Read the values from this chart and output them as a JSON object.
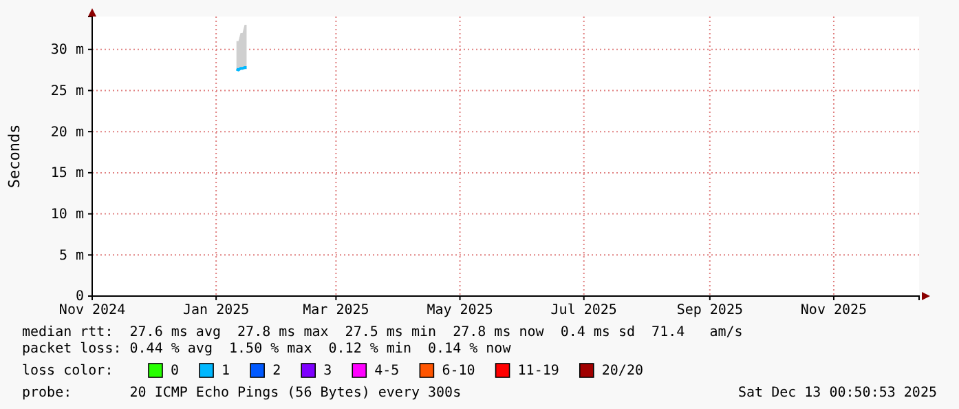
{
  "chart_data": {
    "type": "line",
    "ylabel": "Seconds",
    "x": [
      "2025-01-11",
      "2025-01-12",
      "2025-01-13",
      "2025-01-14",
      "2025-01-15",
      "2025-01-16"
    ],
    "series": [
      {
        "color": "#00b8ff",
        "values": [
          27.6,
          27.5,
          27.7,
          27.7,
          27.8,
          27.8
        ],
        "lower": [
          27.4,
          27.4,
          27.5,
          27.5,
          27.6,
          27.6
        ],
        "upper": [
          31,
          31,
          32,
          32,
          33,
          33
        ]
      }
    ],
    "xlim": [
      "2024-11-01",
      "2025-12-13"
    ],
    "xticks": [
      {
        "value": "2024-11-01",
        "label": "Nov 2024"
      },
      {
        "value": "2025-01-01",
        "label": "Jan 2025"
      },
      {
        "value": "2025-03-01",
        "label": "Mar 2025"
      },
      {
        "value": "2025-05-01",
        "label": "May 2025"
      },
      {
        "value": "2025-07-01",
        "label": "Jul 2025"
      },
      {
        "value": "2025-09-01",
        "label": "Sep 2025"
      },
      {
        "value": "2025-11-01",
        "label": "Nov 2025"
      }
    ],
    "ylim": [
      0,
      34
    ],
    "yticks": [
      0,
      {
        "value": 5,
        "label": "5 m"
      },
      {
        "value": 10,
        "label": "10 m"
      },
      {
        "value": 15,
        "label": "15 m"
      },
      {
        "value": 20,
        "label": "20 m"
      },
      {
        "value": 25,
        "label": "25 m"
      },
      {
        "value": 30,
        "label": "30 m"
      }
    ],
    "grid": true,
    "marker": "none",
    "line_style": "solid",
    "annotations": [
      "median rtt:  27.6 ms avg  27.8 ms max  27.5 ms min  27.8 ms now  0.4 ms sd  71.4   am/s",
      "packet loss: 0.44 % avg  1.50 % max  0.12 % min  0.14 % now",
      "loss color:",
      "0",
      "1",
      "2",
      "3",
      "4-5",
      "6-10",
      "11-19",
      "20/20",
      "probe:       20 ICMP Echo Pings (56 Bytes) every 300s",
      "Sat Dec 13 00:50:53 2025"
    ]
  }
}
